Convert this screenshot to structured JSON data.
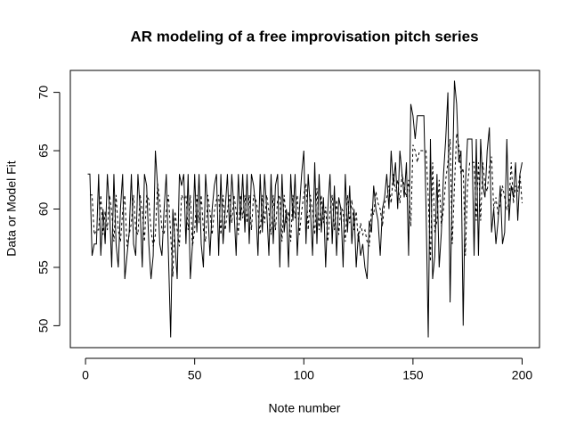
{
  "chart_data": {
    "type": "line",
    "title": "AR modeling of a free improvisation pitch series",
    "xlabel": "Note number",
    "ylabel": "Data or Model Fit",
    "xlim": [
      -6.96,
      207.96
    ],
    "ylim": [
      48.12,
      71.88
    ],
    "xticks": [
      0,
      50,
      100,
      150,
      200
    ],
    "yticks": [
      50,
      55,
      60,
      65,
      70
    ],
    "grid": false,
    "x": [
      1,
      2,
      3,
      4,
      5,
      6,
      7,
      8,
      9,
      10,
      11,
      12,
      13,
      14,
      15,
      16,
      17,
      18,
      19,
      20,
      21,
      22,
      23,
      24,
      25,
      26,
      27,
      28,
      29,
      30,
      31,
      32,
      33,
      34,
      35,
      36,
      37,
      38,
      39,
      40,
      41,
      42,
      43,
      44,
      45,
      46,
      47,
      48,
      49,
      50,
      51,
      52,
      53,
      54,
      55,
      56,
      57,
      58,
      59,
      60,
      61,
      62,
      63,
      64,
      65,
      66,
      67,
      68,
      69,
      70,
      71,
      72,
      73,
      74,
      75,
      76,
      77,
      78,
      79,
      80,
      81,
      82,
      83,
      84,
      85,
      86,
      87,
      88,
      89,
      90,
      91,
      92,
      93,
      94,
      95,
      96,
      97,
      98,
      99,
      100,
      101,
      102,
      103,
      104,
      105,
      106,
      107,
      108,
      109,
      110,
      111,
      112,
      113,
      114,
      115,
      116,
      117,
      118,
      119,
      120,
      121,
      122,
      123,
      124,
      125,
      126,
      127,
      128,
      129,
      130,
      131,
      132,
      133,
      134,
      135,
      136,
      137,
      138,
      139,
      140,
      141,
      142,
      143,
      144,
      145,
      146,
      147,
      148,
      149,
      150,
      151,
      152,
      153,
      154,
      155,
      156,
      157,
      158,
      159,
      160,
      161,
      162,
      163,
      164,
      165,
      166,
      167,
      168,
      169,
      170,
      171,
      172,
      173,
      174,
      175,
      176,
      177,
      178,
      179,
      180,
      181,
      182,
      183,
      184,
      185,
      186,
      187,
      188,
      189,
      190,
      191,
      192,
      193,
      194,
      195,
      196,
      197,
      198,
      199,
      200
    ],
    "series": [
      {
        "color": "#000000",
        "linestyle": "solid",
        "values": [
          63,
          63,
          56,
          57,
          57,
          63,
          56,
          60,
          57,
          63,
          60,
          55,
          63,
          57,
          55,
          60,
          63,
          54,
          56,
          58,
          63,
          57,
          56,
          63,
          60,
          55,
          63,
          62,
          57,
          54,
          56,
          65,
          62,
          57,
          56,
          60,
          63,
          56,
          49,
          60,
          57,
          54,
          63,
          62,
          63,
          57,
          63,
          54,
          57,
          63,
          58,
          63,
          57,
          55,
          63,
          60,
          56,
          60,
          62,
          63,
          56,
          63,
          57,
          60,
          63,
          58,
          63,
          60,
          56,
          63,
          59,
          63,
          58,
          63,
          57,
          63,
          62,
          60,
          56,
          63,
          58,
          63,
          60,
          56,
          63,
          57,
          62,
          63,
          55,
          63,
          58,
          60,
          55,
          63,
          59,
          63,
          56,
          60,
          63,
          65,
          57,
          63,
          60,
          56,
          64,
          57,
          63,
          58,
          61,
          55,
          60,
          63,
          57,
          62,
          56,
          61,
          60,
          55,
          63,
          58,
          62,
          57,
          60,
          55,
          58,
          56,
          57,
          55,
          54,
          59,
          58,
          62,
          60,
          59,
          56,
          60,
          61,
          63,
          60,
          65,
          62,
          64,
          60,
          65,
          63,
          61,
          64,
          56,
          69,
          68,
          66,
          68,
          68,
          68,
          68,
          60,
          49,
          66,
          54,
          56,
          63,
          55,
          58,
          63,
          66,
          70,
          52,
          62,
          71,
          69,
          64,
          65,
          50,
          62,
          66,
          66,
          66,
          56,
          66,
          56,
          66,
          62,
          61,
          65,
          67,
          58,
          60,
          57,
          59,
          62,
          57,
          58,
          66,
          59,
          62,
          61,
          64,
          59,
          63,
          64
        ]
      },
      {
        "color": "#000000",
        "linestyle": "dashed",
        "values": [
          null,
          61.2,
          61.2,
          57.8,
          58.2,
          58.2,
          61.2,
          57.8,
          59.8,
          58.2,
          61.2,
          59.8,
          57.2,
          61.2,
          58.2,
          57.2,
          59.8,
          61.2,
          56.8,
          57.8,
          58.8,
          61.2,
          58.2,
          57.8,
          61.2,
          59.8,
          57.2,
          61.2,
          60.8,
          58.2,
          56.8,
          57.8,
          62.2,
          60.8,
          58.2,
          57.8,
          59.8,
          61.2,
          57.8,
          54.2,
          59.8,
          58.2,
          56.8,
          61.2,
          60.8,
          61.2,
          58.2,
          61.2,
          56.8,
          58.2,
          61.2,
          58.8,
          61.2,
          58.2,
          57.2,
          61.2,
          59.8,
          57.8,
          59.8,
          60.8,
          61.2,
          57.8,
          61.2,
          58.2,
          59.8,
          61.2,
          58.8,
          61.2,
          59.8,
          57.8,
          61.2,
          59.2,
          61.2,
          58.8,
          61.2,
          58.2,
          61.2,
          60.8,
          59.8,
          57.8,
          61.2,
          58.8,
          61.2,
          59.8,
          57.8,
          61.2,
          58.2,
          60.8,
          61.2,
          57.2,
          61.2,
          58.8,
          59.8,
          57.2,
          61.2,
          59.2,
          61.2,
          57.8,
          59.8,
          61.2,
          62.2,
          58.2,
          61.2,
          59.8,
          57.8,
          61.8,
          58.2,
          61.2,
          58.8,
          60.2,
          57.2,
          59.8,
          61.2,
          58.2,
          60.8,
          57.8,
          60.2,
          59.8,
          57.2,
          61.2,
          58.8,
          60.8,
          58.2,
          59.8,
          57.2,
          58.8,
          57.8,
          58.2,
          57.2,
          56.8,
          60.0,
          59.5,
          61.5,
          60.5,
          60.0,
          58.5,
          60.5,
          61.0,
          62.0,
          60.5,
          63.0,
          61.5,
          62.5,
          60.5,
          63.0,
          62.0,
          61.0,
          62.5,
          58.5,
          65.5,
          65.0,
          64.0,
          65.0,
          65.0,
          65.0,
          65.0,
          61.0,
          55.5,
          64.0,
          58.0,
          59.0,
          62.5,
          58.5,
          60.0,
          62.5,
          64.0,
          66.0,
          57.0,
          62.0,
          66.5,
          65.5,
          63.0,
          63.5,
          56.0,
          62.0,
          64.0,
          64.0,
          64.0,
          59.0,
          64.0,
          59.0,
          64.0,
          62.0,
          61.5,
          63.5,
          64.5,
          60.0,
          61.0,
          59.5,
          60.5,
          62.0,
          61.0,
          60.0,
          60.5,
          64.0,
          60.5,
          62.0,
          61.5,
          63.0,
          60.5
        ]
      }
    ]
  }
}
